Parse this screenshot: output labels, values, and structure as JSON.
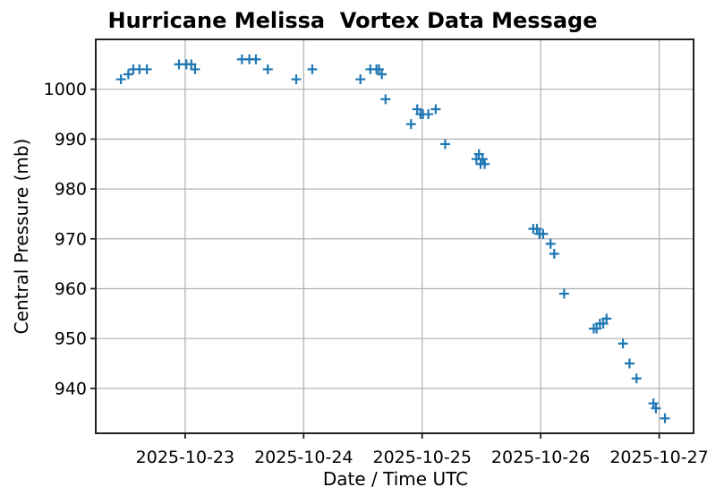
{
  "chart_data": {
    "type": "scatter",
    "title": "Hurricane Melissa  Vortex Data Message",
    "xlabel": "Date / Time UTC",
    "ylabel": "Central Pressure (mb)",
    "xlim": [
      "2025-10-22T05:54",
      "2025-10-27T06:58"
    ],
    "ylim": [
      931,
      1010
    ],
    "grid": true,
    "legend": false,
    "marker": {
      "symbol": "plus",
      "color": "#1f77b4",
      "size": 11,
      "stroke_width": 2.2
    },
    "grid_color": "#b0b0b0",
    "axis_color": "#222222",
    "x_ticks": [
      {
        "t": "2025-10-23T00:00",
        "label": "2025-10-23"
      },
      {
        "t": "2025-10-24T00:00",
        "label": "2025-10-24"
      },
      {
        "t": "2025-10-25T00:00",
        "label": "2025-10-25"
      },
      {
        "t": "2025-10-26T00:00",
        "label": "2025-10-26"
      },
      {
        "t": "2025-10-27T00:00",
        "label": "2025-10-27"
      }
    ],
    "y_ticks": [
      940,
      950,
      960,
      970,
      980,
      990,
      1000
    ],
    "points": [
      {
        "time": "2025-10-22T11:00",
        "pressure": 1002
      },
      {
        "time": "2025-10-22T12:30",
        "pressure": 1003
      },
      {
        "time": "2025-10-22T13:30",
        "pressure": 1004
      },
      {
        "time": "2025-10-22T14:45",
        "pressure": 1004
      },
      {
        "time": "2025-10-22T16:15",
        "pressure": 1004
      },
      {
        "time": "2025-10-22T22:45",
        "pressure": 1005
      },
      {
        "time": "2025-10-23T00:15",
        "pressure": 1005
      },
      {
        "time": "2025-10-23T01:15",
        "pressure": 1005
      },
      {
        "time": "2025-10-23T02:00",
        "pressure": 1004
      },
      {
        "time": "2025-10-23T11:30",
        "pressure": 1006
      },
      {
        "time": "2025-10-23T13:00",
        "pressure": 1006
      },
      {
        "time": "2025-10-23T14:20",
        "pressure": 1006
      },
      {
        "time": "2025-10-23T16:45",
        "pressure": 1004
      },
      {
        "time": "2025-10-23T22:30",
        "pressure": 1002
      },
      {
        "time": "2025-10-24T01:45",
        "pressure": 1004
      },
      {
        "time": "2025-10-24T11:30",
        "pressure": 1002
      },
      {
        "time": "2025-10-24T13:30",
        "pressure": 1004
      },
      {
        "time": "2025-10-24T14:45",
        "pressure": 1004
      },
      {
        "time": "2025-10-24T15:15",
        "pressure": 1004
      },
      {
        "time": "2025-10-24T15:50",
        "pressure": 1003
      },
      {
        "time": "2025-10-24T16:35",
        "pressure": 998
      },
      {
        "time": "2025-10-24T21:45",
        "pressure": 993
      },
      {
        "time": "2025-10-24T23:00",
        "pressure": 996
      },
      {
        "time": "2025-10-24T23:40",
        "pressure": 995
      },
      {
        "time": "2025-10-25T00:10",
        "pressure": 995
      },
      {
        "time": "2025-10-25T01:15",
        "pressure": 995
      },
      {
        "time": "2025-10-25T02:45",
        "pressure": 996
      },
      {
        "time": "2025-10-25T04:40",
        "pressure": 989
      },
      {
        "time": "2025-10-25T11:00",
        "pressure": 986
      },
      {
        "time": "2025-10-25T11:30",
        "pressure": 987
      },
      {
        "time": "2025-10-25T11:50",
        "pressure": 985
      },
      {
        "time": "2025-10-25T12:15",
        "pressure": 986
      },
      {
        "time": "2025-10-25T12:40",
        "pressure": 985
      },
      {
        "time": "2025-10-25T22:30",
        "pressure": 972
      },
      {
        "time": "2025-10-25T23:15",
        "pressure": 972
      },
      {
        "time": "2025-10-25T23:45",
        "pressure": 971
      },
      {
        "time": "2025-10-26T00:30",
        "pressure": 971
      },
      {
        "time": "2025-10-26T02:00",
        "pressure": 969
      },
      {
        "time": "2025-10-26T02:45",
        "pressure": 967
      },
      {
        "time": "2025-10-26T04:45",
        "pressure": 959
      },
      {
        "time": "2025-10-26T10:45",
        "pressure": 952
      },
      {
        "time": "2025-10-26T11:20",
        "pressure": 952
      },
      {
        "time": "2025-10-26T12:00",
        "pressure": 953
      },
      {
        "time": "2025-10-26T12:40",
        "pressure": 953
      },
      {
        "time": "2025-10-26T13:20",
        "pressure": 954
      },
      {
        "time": "2025-10-26T16:40",
        "pressure": 949
      },
      {
        "time": "2025-10-26T18:00",
        "pressure": 945
      },
      {
        "time": "2025-10-26T19:25",
        "pressure": 942
      },
      {
        "time": "2025-10-26T22:50",
        "pressure": 937
      },
      {
        "time": "2025-10-26T23:20",
        "pressure": 936
      },
      {
        "time": "2025-10-27T01:10",
        "pressure": 934
      }
    ]
  }
}
